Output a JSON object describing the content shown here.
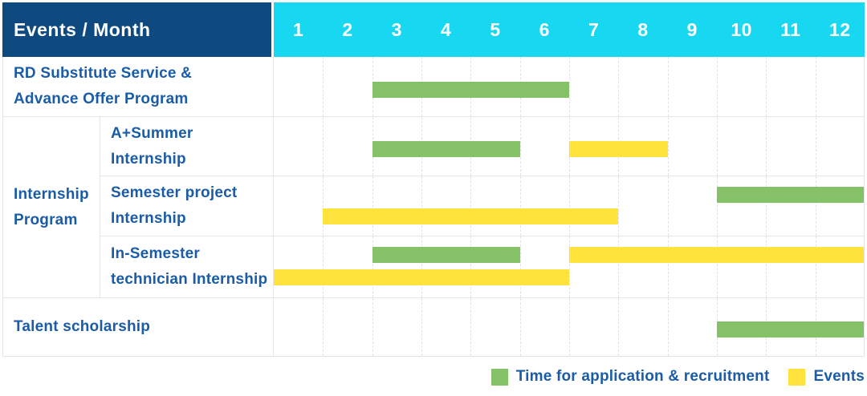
{
  "header": {
    "title": "Events / Month",
    "months": [
      "1",
      "2",
      "3",
      "4",
      "5",
      "6",
      "7",
      "8",
      "9",
      "10",
      "11",
      "12"
    ]
  },
  "colors": {
    "header_bg": "#0e4a80",
    "months_bg": "#17d8f0",
    "application_green": "#85c167",
    "event_yellow": "#ffe23c",
    "label_text": "#1b5ca7"
  },
  "legend": {
    "items": [
      {
        "kind": "application",
        "label": "Time for application & recruitment"
      },
      {
        "kind": "event",
        "label": "Events"
      }
    ]
  },
  "chart_data": {
    "type": "gantt",
    "x_unit": "month",
    "x_range": [
      1,
      12
    ],
    "group_label": "Internship Program",
    "group_label_lines": [
      "Internship",
      "Program"
    ],
    "bar_kinds": {
      "application": "Time for application & recruitment",
      "event": "Events"
    },
    "rows": [
      {
        "id": "rd-substitute-service",
        "label": "RD Substitute Service & Advance Offer Program",
        "label_lines": [
          "RD Substitute Service &",
          "Advance Offer Program"
        ],
        "section": "top",
        "bars": [
          {
            "kind": "application",
            "start": 3,
            "end": 6,
            "track": "single"
          }
        ]
      },
      {
        "id": "a-plus-summer-internship",
        "label": "A+Summer Internship",
        "label_lines": [
          "A+Summer",
          "Internship"
        ],
        "section": "internship",
        "bars": [
          {
            "kind": "application",
            "start": 3,
            "end": 5,
            "track": "single"
          },
          {
            "kind": "event",
            "start": 7,
            "end": 8,
            "track": "single"
          }
        ]
      },
      {
        "id": "semester-project-internship",
        "label": "Semester project Internship",
        "label_lines": [
          "Semester project",
          "Internship"
        ],
        "section": "internship",
        "bars": [
          {
            "kind": "application",
            "start": 10,
            "end": 12,
            "track": "top"
          },
          {
            "kind": "event",
            "start": 2,
            "end": 7,
            "track": "bottom"
          }
        ]
      },
      {
        "id": "in-semester-technician-internship",
        "label": "In-Semester technician Internship",
        "label_lines": [
          "In-Semester",
          "technician Internship"
        ],
        "section": "internship",
        "bars": [
          {
            "kind": "application",
            "start": 3,
            "end": 5,
            "track": "top"
          },
          {
            "kind": "event",
            "start": 7,
            "end": 12,
            "track": "top"
          },
          {
            "kind": "event",
            "start": 1,
            "end": 6,
            "track": "bottom"
          }
        ]
      },
      {
        "id": "talent-scholarship",
        "label": "Talent scholarship",
        "label_lines": [
          "Talent scholarship"
        ],
        "section": "bottom",
        "bars": [
          {
            "kind": "application",
            "start": 10,
            "end": 12,
            "track": "single"
          }
        ]
      }
    ]
  }
}
